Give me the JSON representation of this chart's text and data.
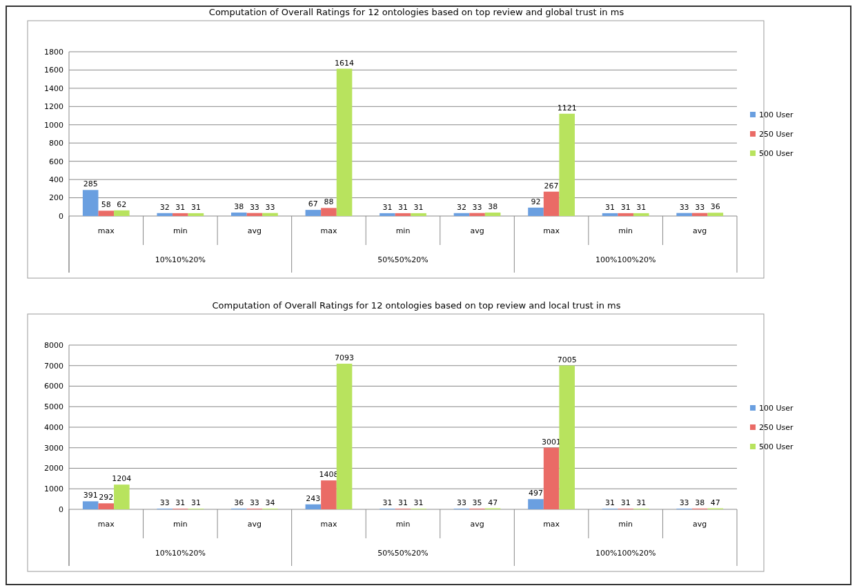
{
  "chart_data": [
    {
      "type": "bar",
      "title": "Computation of Overall Ratings for 12 ontologies based on top review and global trust in ms",
      "categories": [
        "max",
        "min",
        "avg",
        "max",
        "min",
        "avg",
        "max",
        "min",
        "avg"
      ],
      "annotations": [
        "10%10%20%",
        "50%50%20%",
        "100%100%20%"
      ],
      "series": [
        {
          "name": "100 User",
          "color": "#6a9fe0",
          "values": [
            285,
            32,
            38,
            67,
            31,
            32,
            92,
            31,
            33
          ]
        },
        {
          "name": "250 User",
          "color": "#ea6b66",
          "values": [
            58,
            31,
            33,
            88,
            31,
            33,
            267,
            31,
            33
          ]
        },
        {
          "name": "500 User",
          "color": "#b8e35e",
          "values": [
            62,
            31,
            33,
            1614,
            31,
            38,
            1121,
            31,
            36
          ]
        }
      ],
      "ylim": [
        0,
        1800
      ],
      "yticks": [
        0,
        200,
        400,
        600,
        800,
        1000,
        1200,
        1400,
        1600,
        1800
      ],
      "grid": "y",
      "legend": "right",
      "data_labels": true
    },
    {
      "type": "bar",
      "title": "Computation of Overall Ratings for 12 ontologies based on top review and local trust in ms",
      "categories": [
        "max",
        "min",
        "avg",
        "max",
        "min",
        "avg",
        "max",
        "min",
        "avg"
      ],
      "annotations": [
        "10%10%20%",
        "50%50%20%",
        "100%100%20%"
      ],
      "series": [
        {
          "name": "100 User",
          "color": "#6a9fe0",
          "values": [
            391,
            33,
            36,
            243,
            31,
            33,
            497,
            31,
            33
          ]
        },
        {
          "name": "250 User",
          "color": "#ea6b66",
          "values": [
            292,
            31,
            33,
            1408,
            31,
            35,
            3001,
            31,
            38
          ]
        },
        {
          "name": "500 User",
          "color": "#b8e35e",
          "values": [
            1204,
            31,
            34,
            7093,
            31,
            47,
            7005,
            31,
            47
          ]
        }
      ],
      "ylim": [
        0,
        8000
      ],
      "yticks": [
        0,
        1000,
        2000,
        3000,
        4000,
        5000,
        6000,
        7000,
        8000
      ],
      "grid": "y",
      "legend": "right",
      "data_labels": true
    }
  ]
}
